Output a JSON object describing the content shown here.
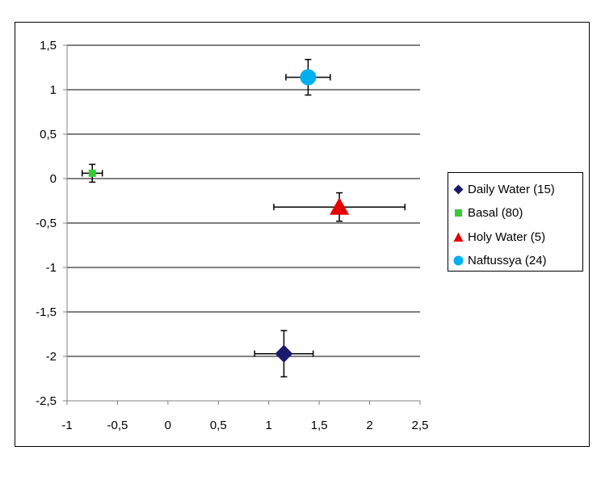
{
  "chart_data": {
    "type": "scatter",
    "xlim": [
      -1,
      2.5
    ],
    "ylim": [
      -2.5,
      1.5
    ],
    "x_ticks": [
      "-1",
      "-0,5",
      "0",
      "0,5",
      "1",
      "1,5",
      "2",
      "2,5"
    ],
    "y_ticks": [
      "1,5",
      "1",
      "0,5",
      "0",
      "-0,5",
      "-1",
      "-1,5",
      "-2",
      "-2,5"
    ],
    "grid": "horizontal",
    "legend_position": "right",
    "series": [
      {
        "name": "Daily Water (15)",
        "marker": "diamond",
        "color": "#1a1a6e",
        "x": 1.15,
        "y": -1.97,
        "x_err": 0.29,
        "y_err": 0.26
      },
      {
        "name": "Basal (80)",
        "marker": "square",
        "color": "#33cc33",
        "x": -0.75,
        "y": 0.06,
        "x_err": 0.1,
        "y_err": 0.1
      },
      {
        "name": "Holy Water (5)",
        "marker": "triangle",
        "color": "#e60000",
        "x": 1.7,
        "y": -0.32,
        "x_err": 0.65,
        "y_err": 0.16
      },
      {
        "name": "Naftussya (24)",
        "marker": "circle",
        "color": "#00b0f0",
        "x": 1.39,
        "y": 1.14,
        "x_err": 0.22,
        "y_err": 0.2
      }
    ]
  }
}
